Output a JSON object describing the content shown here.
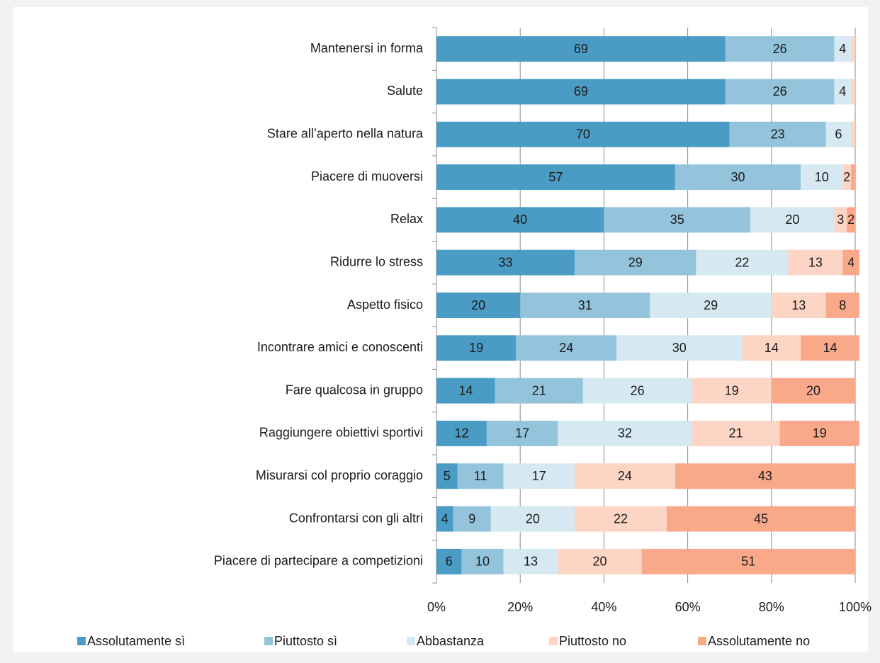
{
  "chart_data": {
    "type": "stacked-barh",
    "categories": [
      "Mantenersi in forma",
      "Salute",
      "Stare all’aperto nella natura",
      "Piacere di muoversi",
      "Relax",
      "Ridurre lo stress",
      "Aspetto fisico",
      "Incontrare amici e conoscenti",
      "Fare qualcosa in gruppo",
      "Raggiungere obiettivi sportivi",
      "Misurarsi col proprio coraggio",
      "Confrontarsi con gli altri",
      "Piacere di partecipare a competizioni"
    ],
    "series": [
      {
        "name": "Assolutamente sì",
        "color": "#4b9cc4",
        "values": [
          69,
          69,
          70,
          57,
          40,
          33,
          20,
          19,
          14,
          12,
          5,
          4,
          6
        ]
      },
      {
        "name": "Piuttosto sì",
        "color": "#93c4dc",
        "values": [
          26,
          26,
          23,
          30,
          35,
          29,
          31,
          24,
          21,
          17,
          11,
          9,
          10
        ]
      },
      {
        "name": "Abbastanza",
        "color": "#d6e8f1",
        "values": [
          4,
          4,
          6,
          10,
          20,
          22,
          29,
          30,
          26,
          32,
          17,
          20,
          13
        ]
      },
      {
        "name": "Piuttosto no",
        "color": "#fdd5c5",
        "values": [
          1,
          1,
          1,
          2,
          3,
          13,
          13,
          14,
          19,
          21,
          24,
          22,
          20
        ],
        "value_labels": [
          null,
          null,
          null,
          "2",
          "3",
          "13",
          "13",
          "14",
          "19",
          "21",
          "24",
          "22",
          "20"
        ]
      },
      {
        "name": "Assolutamente no",
        "color": "#f9a98a",
        "values": [
          0,
          0,
          0,
          1,
          2,
          4,
          8,
          14,
          20,
          19,
          43,
          45,
          51
        ],
        "value_labels": [
          null,
          null,
          null,
          null,
          "2",
          "4",
          "8",
          "14",
          "20",
          "19",
          "43",
          "45",
          "51"
        ]
      }
    ],
    "xlim": [
      0,
      100
    ],
    "xticks": [
      {
        "value": 0,
        "label": "0%"
      },
      {
        "value": 20,
        "label": "20%"
      },
      {
        "value": 40,
        "label": "40%"
      },
      {
        "value": 60,
        "label": "60%"
      },
      {
        "value": 80,
        "label": "80%"
      },
      {
        "value": 100,
        "label": "100%"
      }
    ],
    "grid": true,
    "legend": "bottom"
  }
}
